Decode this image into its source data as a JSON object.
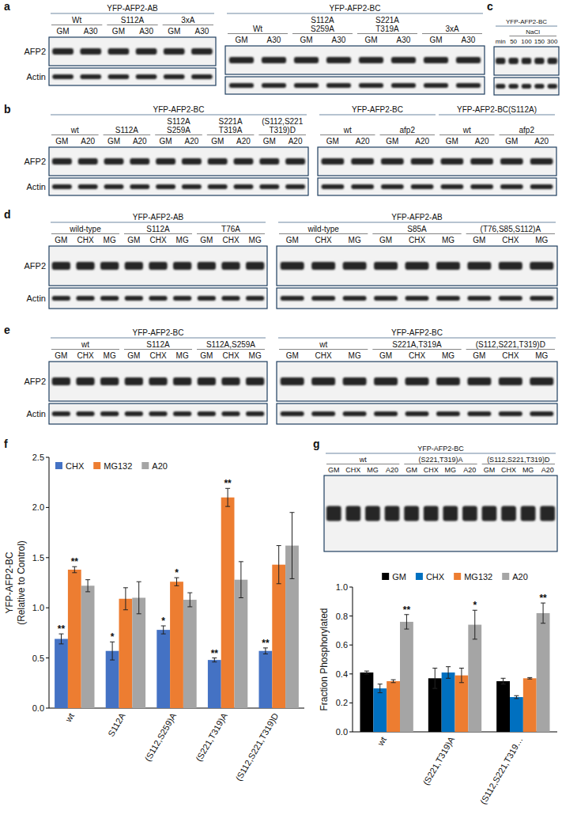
{
  "panel_letters": [
    "a",
    "b",
    "c",
    "d",
    "e",
    "f",
    "g"
  ],
  "blots": [
    {
      "sections": [
        {
          "title": "YFP-AFP2-AB",
          "groups": [
            {
              "label": [
                "Wt"
              ],
              "lanes": [
                "GM",
                "A30"
              ]
            },
            {
              "label": [
                "S112A"
              ],
              "lanes": [
                "GM",
                "A30"
              ]
            },
            {
              "label": [
                "3xA"
              ],
              "lanes": [
                "GM",
                "A30"
              ]
            }
          ]
        }
      ],
      "row_labels": [
        "AFP2",
        "Actin"
      ]
    },
    {
      "sections": [
        {
          "title": "YFP-AFP2-BC",
          "groups": [
            {
              "label": [
                "Wt"
              ],
              "lanes": [
                "GM",
                "A30"
              ]
            },
            {
              "label": [
                "S112A",
                "S259A"
              ],
              "lanes": [
                "GM",
                "A30"
              ]
            },
            {
              "label": [
                "S221A",
                "T319A"
              ],
              "lanes": [
                "GM",
                "A30"
              ]
            },
            {
              "label": [
                "3xA"
              ],
              "lanes": [
                "GM",
                "A30"
              ]
            }
          ]
        }
      ]
    },
    {
      "sections": [
        {
          "title": "YFP-AFP2-BC",
          "groups": [
            {
              "lanes": [
                "min"
              ]
            },
            {
              "label": [
                "NaCl"
              ],
              "lanes": [
                "50",
                "100",
                "150",
                "300"
              ]
            }
          ]
        }
      ]
    },
    {
      "sections": [
        {
          "title": "YFP-AFP2-BC",
          "groups": [
            {
              "label": [
                "wt"
              ],
              "lanes": [
                "GM",
                "A20"
              ]
            },
            {
              "label": [
                "S112A"
              ],
              "lanes": [
                "GM",
                "A20"
              ]
            },
            {
              "label": [
                "S112A",
                "S259A"
              ],
              "lanes": [
                "GM",
                "A20"
              ]
            },
            {
              "label": [
                "S221A",
                "T319A"
              ],
              "lanes": [
                "GM",
                "A20"
              ]
            },
            {
              "label": [
                "(S112,S221",
                "T319)D"
              ],
              "lanes": [
                "GM",
                "A20"
              ]
            }
          ]
        }
      ],
      "row_labels": [
        "AFP2",
        "Actin"
      ]
    },
    {
      "sections": [
        {
          "title": "YFP-AFP2-BC",
          "groups": [
            {
              "label": [
                "wt"
              ],
              "lanes": [
                "GM",
                "A20"
              ]
            },
            {
              "label": [
                "afp2"
              ],
              "lanes": [
                "GM",
                "A20"
              ]
            }
          ]
        },
        {
          "title": "YFP-AFP2-BC(S112A)",
          "groups": [
            {
              "label": [
                "wt"
              ],
              "lanes": [
                "GM",
                "A20"
              ]
            },
            {
              "label": [
                "afp2"
              ],
              "lanes": [
                "GM",
                "A20"
              ]
            }
          ]
        }
      ]
    },
    {
      "sections": [
        {
          "title": "YFP-AFP2-AB",
          "groups": [
            {
              "label": [
                "wild-type"
              ],
              "lanes": [
                "GM",
                "CHX",
                "MG"
              ]
            },
            {
              "label": [
                "S112A"
              ],
              "lanes": [
                "GM",
                "CHX",
                "MG"
              ]
            },
            {
              "label": [
                "T76A"
              ],
              "lanes": [
                "GM",
                "CHX",
                "MG"
              ]
            }
          ]
        }
      ],
      "row_labels": [
        "AFP2",
        "Actin"
      ]
    },
    {
      "sections": [
        {
          "title": "YFP-AFP2-AB",
          "groups": [
            {
              "label": [
                "wild-type"
              ],
              "lanes": [
                "GM",
                "CHX",
                "MG"
              ]
            },
            {
              "label": [
                "S85A"
              ],
              "lanes": [
                "GM",
                "CHX",
                "MG"
              ]
            },
            {
              "label": [
                "(T76,S85,S112)A"
              ],
              "lanes": [
                "GM",
                "CHX",
                "MG"
              ]
            }
          ]
        }
      ]
    },
    {
      "sections": [
        {
          "title": "YFP-AFP2-BC",
          "groups": [
            {
              "label": [
                "wt"
              ],
              "lanes": [
                "GM",
                "CHX",
                "MG"
              ]
            },
            {
              "label": [
                "S112A"
              ],
              "lanes": [
                "GM",
                "CHX",
                "MG"
              ]
            },
            {
              "label": [
                "S112A,S259A"
              ],
              "lanes": [
                "GM",
                "CHX",
                "MG"
              ]
            }
          ]
        }
      ],
      "row_labels": [
        "AFP2",
        "Actin"
      ]
    },
    {
      "sections": [
        {
          "title": "YFP-AFP2-BC",
          "groups": [
            {
              "label": [
                "wt"
              ],
              "lanes": [
                "GM",
                "CHX",
                "MG"
              ]
            },
            {
              "label": [
                "S221A,T319A"
              ],
              "lanes": [
                "GM",
                "CHX",
                "MG"
              ]
            },
            {
              "label": [
                "(S112,S221,T319)D"
              ],
              "lanes": [
                "GM",
                "CHX",
                "MG"
              ]
            }
          ]
        }
      ]
    },
    {
      "sections": [
        {
          "title": "YFP-AFP2-BC",
          "groups": [
            {
              "label": [
                "wt"
              ],
              "lanes": [
                "GM",
                "CHX",
                "MG",
                "A20"
              ]
            },
            {
              "label": [
                "(S221,T319)A"
              ],
              "lanes": [
                "GM",
                "CHX",
                "MG",
                "A20"
              ]
            },
            {
              "label": [
                "(S112,S221,T319)D"
              ],
              "lanes": [
                "GM",
                "CHX",
                "MG",
                "A20"
              ]
            }
          ]
        }
      ]
    }
  ],
  "chart_data": [
    {
      "type": "bar",
      "ylabel": [
        "YFP-AFP2-BC",
        "(Relative to Control)"
      ],
      "categories": [
        "wt",
        "S112A",
        "(S112,S259)A",
        "(S221,T319)A",
        "(S112,S221,T319)D"
      ],
      "series": [
        {
          "name": "CHX",
          "color": "#4472c4",
          "values": [
            0.69,
            0.57,
            0.78,
            0.48,
            0.57
          ],
          "errors": [
            0.05,
            0.09,
            0.04,
            0.02,
            0.03
          ],
          "significance": [
            "**",
            "*",
            "*",
            "**",
            "**"
          ]
        },
        {
          "name": "MG132",
          "color": "#ed7d31",
          "values": [
            1.38,
            1.09,
            1.26,
            2.1,
            1.43
          ],
          "errors": [
            0.03,
            0.11,
            0.04,
            0.09,
            0.19
          ],
          "significance": [
            "**",
            null,
            "*",
            "**",
            null
          ]
        },
        {
          "name": "A20",
          "color": "#a5a5a5",
          "values": [
            1.22,
            1.1,
            1.08,
            1.28,
            1.62
          ],
          "errors": [
            0.06,
            0.16,
            0.07,
            0.18,
            0.33
          ],
          "significance": [
            null,
            null,
            null,
            null,
            null
          ]
        }
      ],
      "ylim": [
        0,
        2.5
      ],
      "yticks": [
        {
          "value": 0,
          "label": "0.0"
        },
        {
          "value": 0.5,
          "label": "0.5"
        },
        {
          "value": 1,
          "label": "1.0"
        },
        {
          "value": 1.5,
          "label": "1.5"
        },
        {
          "value": 2,
          "label": "2.0"
        },
        {
          "value": 2.5,
          "label": "2.5"
        }
      ],
      "grid": false,
      "legend": "top-left"
    },
    {
      "type": "bar",
      "ylabel": "Fraction Phosphorylated",
      "categories": [
        "wt",
        "(S221,T319)A",
        "(S112,S221,T319…"
      ],
      "series": [
        {
          "name": "GM",
          "color": "#000000",
          "values": [
            0.41,
            0.37,
            0.35
          ],
          "errors": [
            0.01,
            0.07,
            0.02
          ],
          "significance": [
            null,
            null,
            null
          ]
        },
        {
          "name": "CHX",
          "color": "#0070c0",
          "values": [
            0.3,
            0.41,
            0.24
          ],
          "errors": [
            0.03,
            0.04,
            0.01
          ],
          "significance": [
            null,
            null,
            null
          ]
        },
        {
          "name": "MG132",
          "color": "#ed7d31",
          "values": [
            0.35,
            0.39,
            0.37
          ],
          "errors": [
            0.01,
            0.05,
            0.005
          ],
          "significance": [
            null,
            null,
            null
          ]
        },
        {
          "name": "A20",
          "color": "#a5a5a5",
          "values": [
            0.76,
            0.74,
            0.82
          ],
          "errors": [
            0.05,
            0.1,
            0.07
          ],
          "significance": [
            "**",
            "*",
            "**"
          ]
        }
      ],
      "ylim": [
        0,
        1
      ],
      "yticks": [
        {
          "value": 0,
          "label": "0.0"
        },
        {
          "value": 0.2,
          "label": "0.2"
        },
        {
          "value": 0.4,
          "label": "0.4"
        },
        {
          "value": 0.6,
          "label": "0.6"
        },
        {
          "value": 0.8,
          "label": "0.8"
        },
        {
          "value": 1,
          "label": "1.0"
        }
      ],
      "grid": false,
      "legend": "top"
    }
  ]
}
